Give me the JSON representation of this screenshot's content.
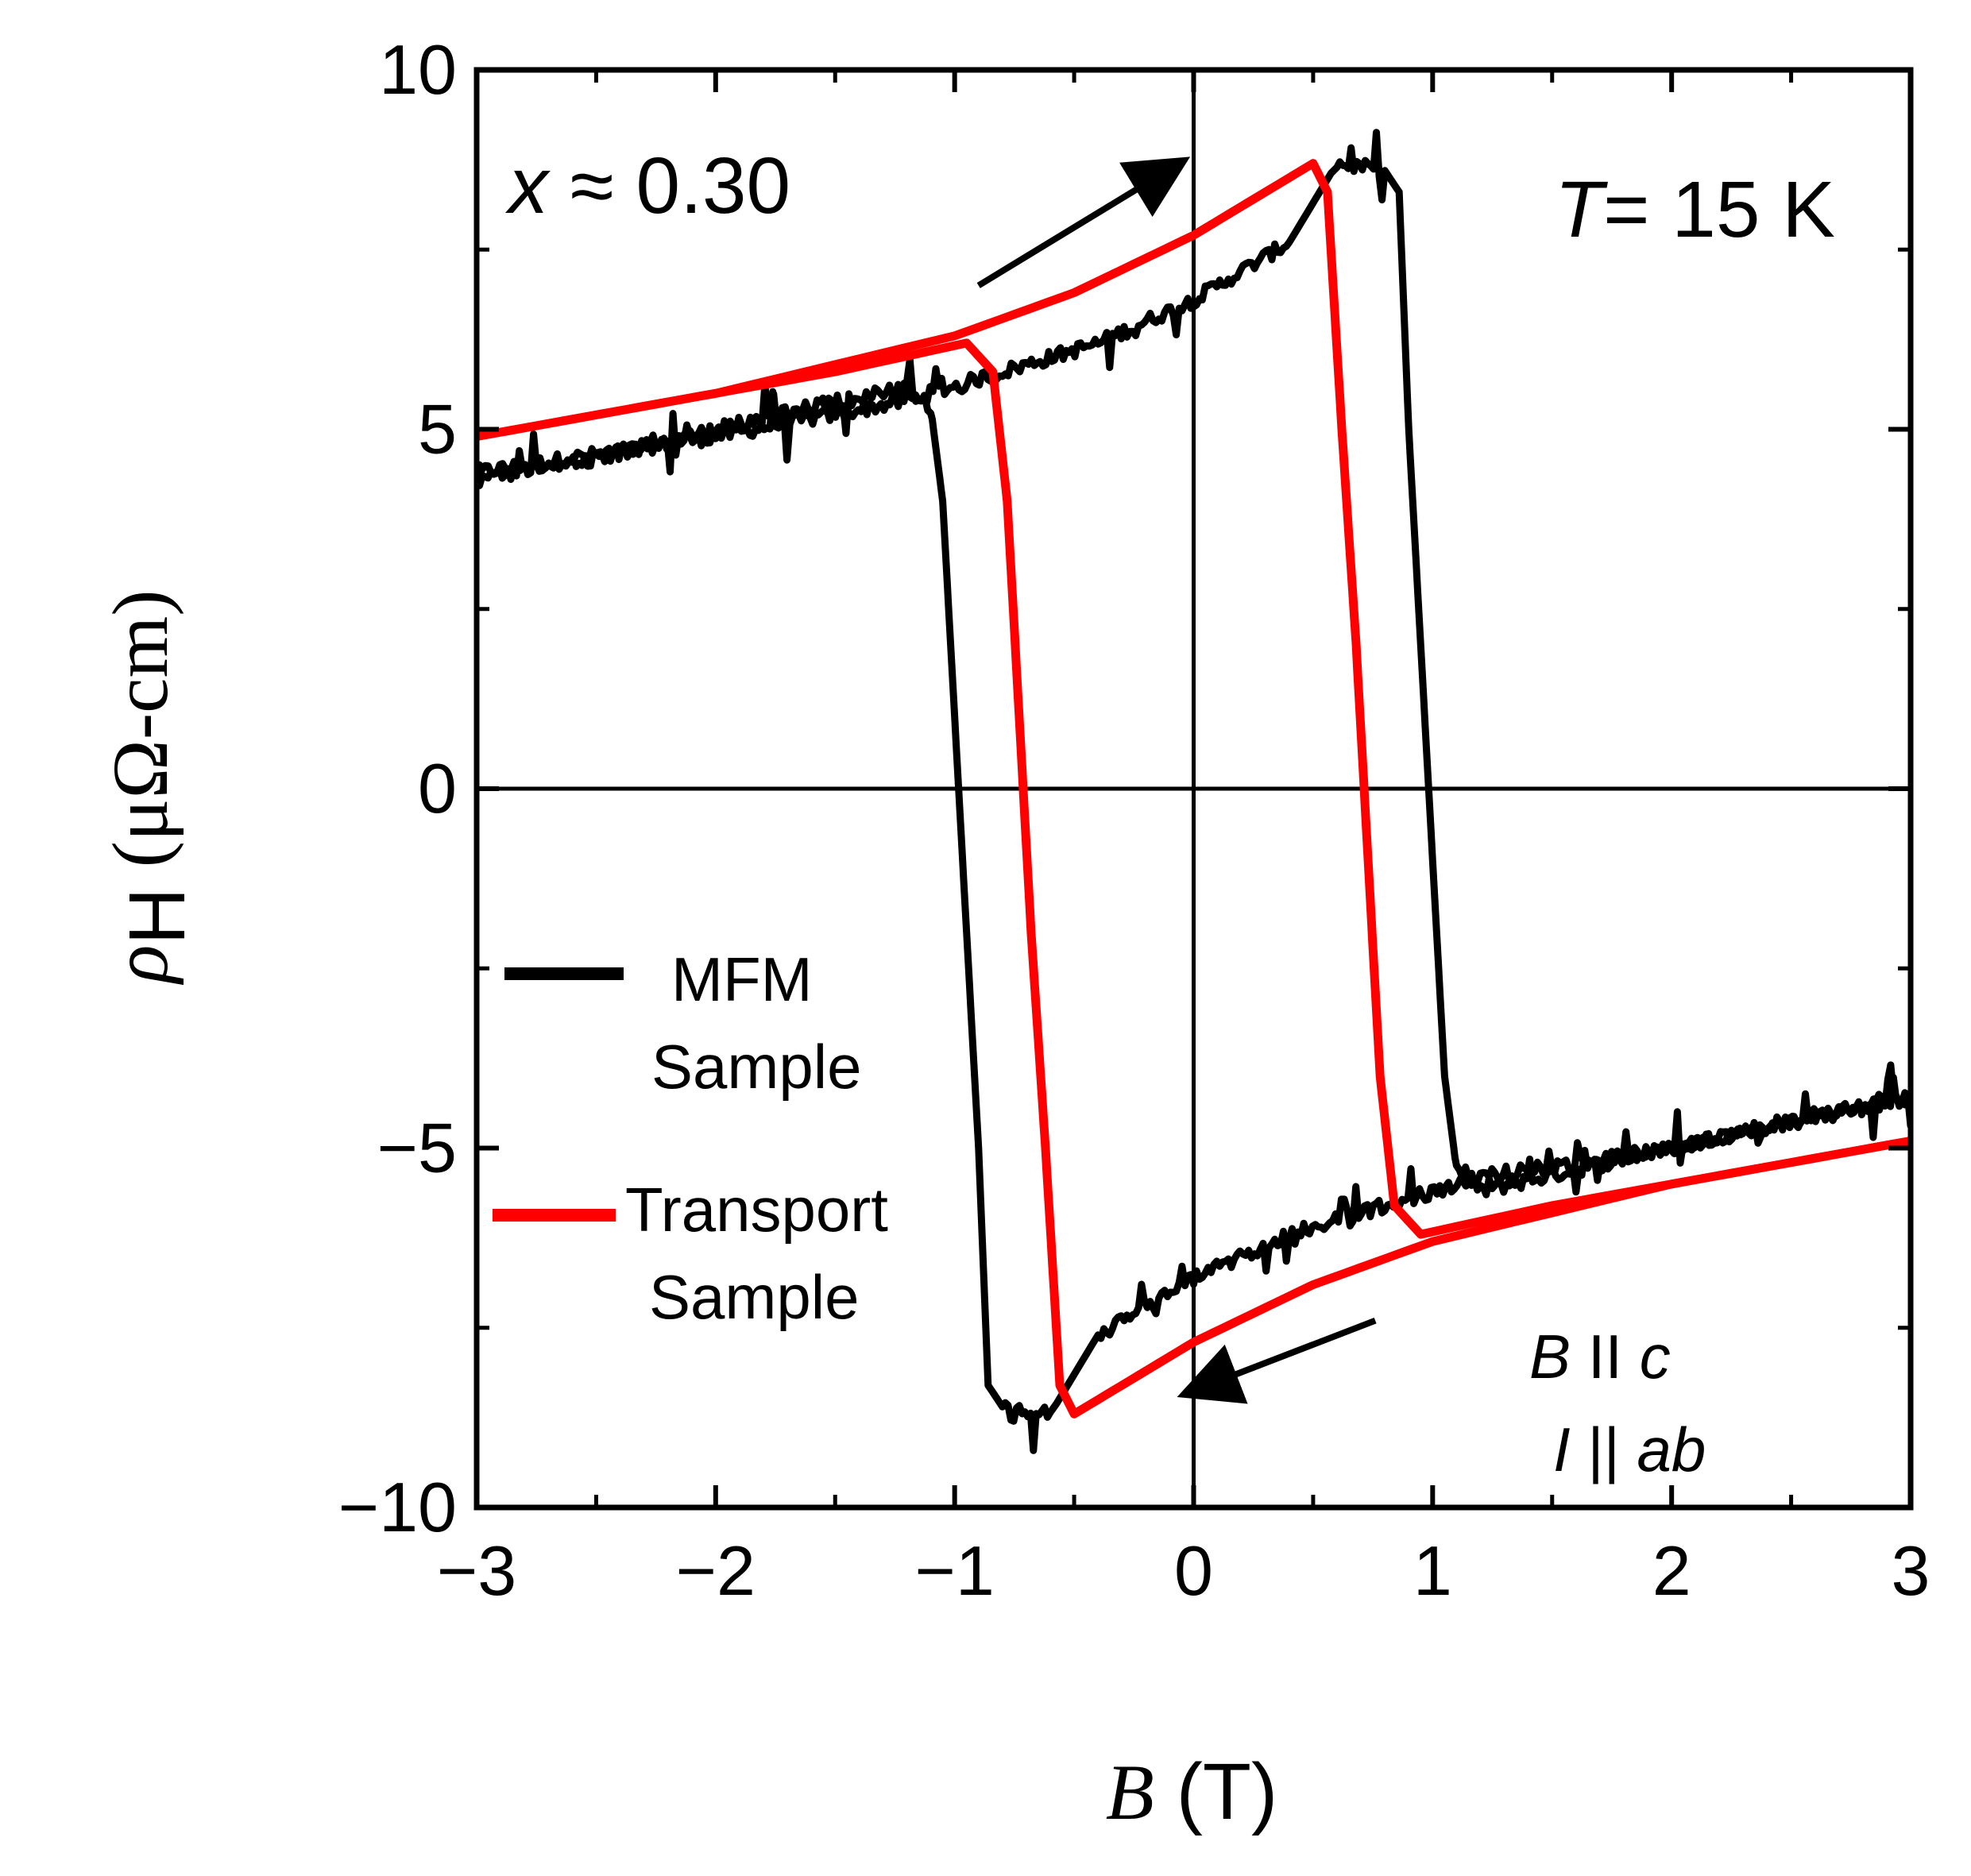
{
  "chart_data": {
    "type": "line",
    "x_axis": {
      "symbol": "B",
      "unit": "(T)",
      "range": [
        -3,
        3
      ],
      "ticks": [
        "−3",
        "−2",
        "−1",
        "0",
        "1",
        "2",
        "3"
      ]
    },
    "y_axis": {
      "symbol": "ρ",
      "subscript": "H",
      "unit": "(μΩ-cm)",
      "range": [
        -10,
        10
      ],
      "ticks": [
        "−10",
        "−5",
        "0",
        "5",
        "10"
      ]
    },
    "annotations": {
      "composition": {
        "symbol": "x",
        "text": "≈ 0.30"
      },
      "temperature": {
        "symbol": "T",
        "text": "= 15 K"
      },
      "field_dir": {
        "symbol": "B",
        "rel": "II",
        "target": "c"
      },
      "current_dir": {
        "symbol": "I",
        "rel": "||",
        "target": "ab"
      }
    },
    "legend": {
      "placement": "left-middle"
    },
    "series": [
      {
        "name_lines": [
          "MFM",
          "Sample"
        ],
        "color": "#000000",
        "noisy": true,
        "up_sweep": [
          [
            -3.0,
            4.4
          ],
          [
            -2.0,
            4.9
          ],
          [
            -1.2,
            5.4
          ],
          [
            -0.8,
            5.8
          ],
          [
            -0.4,
            6.2
          ],
          [
            0.0,
            6.8
          ],
          [
            0.4,
            7.6
          ],
          [
            0.6,
            8.7
          ],
          [
            0.8,
            8.6
          ],
          [
            0.86,
            8.3
          ],
          [
            0.9,
            5.0
          ],
          [
            0.95,
            2.0
          ],
          [
            1.0,
            -1.0
          ],
          [
            1.05,
            -4.0
          ],
          [
            1.1,
            -5.3
          ],
          [
            1.2,
            -5.6
          ],
          [
            1.6,
            -5.3
          ],
          [
            2.0,
            -5.0
          ],
          [
            2.5,
            -4.6
          ],
          [
            3.0,
            -4.3
          ]
        ],
        "down_sweep": [
          [
            3.0,
            -4.3
          ],
          [
            2.0,
            -5.0
          ],
          [
            1.2,
            -5.4
          ],
          [
            0.8,
            -5.8
          ],
          [
            0.4,
            -6.2
          ],
          [
            0.0,
            -6.8
          ],
          [
            -0.4,
            -7.6
          ],
          [
            -0.6,
            -8.7
          ],
          [
            -0.8,
            -8.6
          ],
          [
            -0.86,
            -8.3
          ],
          [
            -0.9,
            -5.0
          ],
          [
            -0.95,
            -2.0
          ],
          [
            -1.0,
            1.0
          ],
          [
            -1.05,
            4.0
          ],
          [
            -1.1,
            5.3
          ],
          [
            -1.2,
            5.6
          ],
          [
            -1.6,
            5.3
          ],
          [
            -2.0,
            5.0
          ],
          [
            -2.5,
            4.6
          ],
          [
            -3.0,
            4.3
          ]
        ]
      },
      {
        "name_lines": [
          "Transport",
          "Sample"
        ],
        "color": "#ff0000",
        "noisy": false,
        "up_sweep": [
          [
            -3.0,
            4.9
          ],
          [
            -2.0,
            5.5
          ],
          [
            -1.0,
            6.3
          ],
          [
            -0.5,
            6.9
          ],
          [
            0.0,
            7.7
          ],
          [
            0.3,
            8.3
          ],
          [
            0.5,
            8.7
          ],
          [
            0.56,
            8.3
          ],
          [
            0.62,
            5.0
          ],
          [
            0.68,
            2.0
          ],
          [
            0.73,
            -1.0
          ],
          [
            0.78,
            -4.0
          ],
          [
            0.84,
            -5.8
          ],
          [
            0.95,
            -6.2
          ],
          [
            1.5,
            -5.8
          ],
          [
            2.0,
            -5.5
          ],
          [
            2.5,
            -5.2
          ],
          [
            3.0,
            -4.9
          ]
        ],
        "down_sweep": [
          [
            3.0,
            -4.9
          ],
          [
            2.0,
            -5.5
          ],
          [
            1.0,
            -6.3
          ],
          [
            0.5,
            -6.9
          ],
          [
            0.0,
            -7.7
          ],
          [
            -0.3,
            -8.3
          ],
          [
            -0.5,
            -8.7
          ],
          [
            -0.56,
            -8.3
          ],
          [
            -0.62,
            -5.0
          ],
          [
            -0.68,
            -2.0
          ],
          [
            -0.73,
            1.0
          ],
          [
            -0.78,
            4.0
          ],
          [
            -0.84,
            5.8
          ],
          [
            -0.95,
            6.2
          ],
          [
            -1.5,
            5.8
          ],
          [
            -2.0,
            5.5
          ],
          [
            -2.5,
            5.2
          ],
          [
            -3.0,
            4.9
          ]
        ]
      }
    ],
    "arrows": [
      {
        "name": "sweep-up-arrow",
        "from": [
          -0.9,
          7.0
        ],
        "to": [
          -0.06,
          8.7
        ]
      },
      {
        "name": "sweep-down-arrow",
        "from": [
          0.76,
          -7.4
        ],
        "to": [
          -0.02,
          -8.4
        ]
      }
    ],
    "reference_lines": {
      "x": 0,
      "y": 0
    }
  }
}
